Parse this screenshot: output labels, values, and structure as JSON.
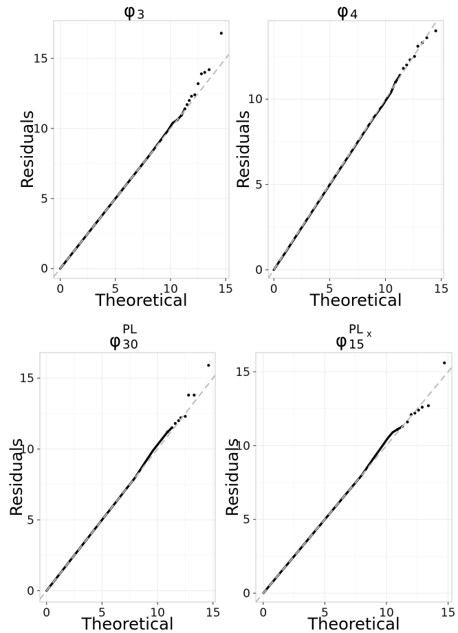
{
  "chart_data": [
    {
      "type": "scatter",
      "title": "φ",
      "title_sub": "3",
      "title_sup": "",
      "title_sup_sub": "",
      "xlabel": "Theoretical",
      "ylabel": "Residuals",
      "xlim": [
        -0.6,
        15.3
      ],
      "ylim": [
        -0.7,
        17.7
      ],
      "xticks": [
        0,
        5,
        10,
        15
      ],
      "yticks": [
        0,
        5,
        10,
        15
      ],
      "grid": true,
      "reference_line": {
        "slope": 1,
        "intercept": 0,
        "color": "#bdbdbd",
        "style": "dashed"
      },
      "points": [
        [
          0,
          0
        ],
        [
          1,
          1
        ],
        [
          2,
          2
        ],
        [
          3,
          3
        ],
        [
          4,
          4
        ],
        [
          5,
          5
        ],
        [
          6,
          6
        ],
        [
          7,
          7
        ],
        [
          8,
          8
        ],
        [
          9,
          9.05
        ],
        [
          9.8,
          9.9
        ],
        [
          10.2,
          10.4
        ],
        [
          10.6,
          10.6
        ],
        [
          11,
          10.95
        ],
        [
          11.3,
          11.4
        ],
        [
          11.5,
          11.7
        ],
        [
          11.7,
          12
        ],
        [
          11.9,
          12.3
        ],
        [
          12.2,
          12.4
        ],
        [
          12.5,
          13.2
        ],
        [
          12.8,
          13.9
        ],
        [
          13.1,
          14
        ],
        [
          13.5,
          14.2
        ],
        [
          14.6,
          16.8
        ]
      ]
    },
    {
      "type": "scatter",
      "title": "φ",
      "title_sub": "4",
      "title_sup": "",
      "title_sup_sub": "",
      "xlabel": "Theoretical",
      "ylabel": "Residuals",
      "xlim": [
        -0.5,
        15.2
      ],
      "ylim": [
        -0.5,
        14.6
      ],
      "xticks": [
        0,
        5,
        10,
        15
      ],
      "yticks": [
        0,
        5,
        10
      ],
      "grid": true,
      "reference_line": {
        "slope": 1,
        "intercept": 0,
        "color": "#bdbdbd",
        "style": "dashed"
      },
      "points": [
        [
          0,
          0
        ],
        [
          1,
          0.98
        ],
        [
          2,
          1.98
        ],
        [
          3,
          2.98
        ],
        [
          4,
          3.98
        ],
        [
          5,
          4.98
        ],
        [
          6,
          5.98
        ],
        [
          7,
          6.97
        ],
        [
          8,
          7.97
        ],
        [
          9,
          8.97
        ],
        [
          9.7,
          9.6
        ],
        [
          10,
          9.9
        ],
        [
          10.5,
          10.4
        ],
        [
          10.9,
          11
        ],
        [
          11.3,
          11.4
        ],
        [
          11.6,
          11.8
        ],
        [
          11.9,
          12
        ],
        [
          12.2,
          12.3
        ],
        [
          12.6,
          12.5
        ],
        [
          12.9,
          13.1
        ],
        [
          13.3,
          13.3
        ],
        [
          13.7,
          13.6
        ],
        [
          14.5,
          14
        ]
      ]
    },
    {
      "type": "scatter",
      "title": "φ",
      "title_sub": "30",
      "title_sup": "PL",
      "title_sup_sub": "",
      "xlabel": "Theoretical",
      "ylabel": "Residuals",
      "xlim": [
        -0.6,
        15.2
      ],
      "ylim": [
        -0.8,
        16.8
      ],
      "xticks": [
        0,
        5,
        10,
        15
      ],
      "yticks": [
        0,
        5,
        10,
        15
      ],
      "grid": true,
      "reference_line": {
        "slope": 1,
        "intercept": 0,
        "color": "#bdbdbd",
        "style": "dashed"
      },
      "points": [
        [
          0,
          0
        ],
        [
          1,
          1
        ],
        [
          2,
          2
        ],
        [
          3,
          3
        ],
        [
          4,
          4
        ],
        [
          5,
          5
        ],
        [
          6,
          6
        ],
        [
          7,
          7
        ],
        [
          8,
          8
        ],
        [
          9,
          9.2
        ],
        [
          9.6,
          9.9
        ],
        [
          10.1,
          10.4
        ],
        [
          10.5,
          10.8
        ],
        [
          10.9,
          11.2
        ],
        [
          11.3,
          11.5
        ],
        [
          11.6,
          11.8
        ],
        [
          11.9,
          12
        ],
        [
          12.1,
          12.2
        ],
        [
          12.5,
          12.3
        ],
        [
          12.8,
          13.8
        ],
        [
          13.3,
          13.8
        ],
        [
          14.6,
          15.9
        ]
      ]
    },
    {
      "type": "scatter",
      "title": "φ",
      "title_sub": "15",
      "title_sup": "PL",
      "title_sup_sub": "x",
      "xlabel": "Theoretical",
      "ylabel": "Residuals",
      "xlim": [
        -0.6,
        15.3
      ],
      "ylim": [
        -0.6,
        16.3
      ],
      "xticks": [
        0,
        5,
        10,
        15
      ],
      "yticks": [
        0,
        5,
        10,
        15
      ],
      "grid": true,
      "reference_line": {
        "slope": 1,
        "intercept": 0,
        "color": "#bdbdbd",
        "style": "dashed"
      },
      "points": [
        [
          0,
          0
        ],
        [
          1,
          1
        ],
        [
          2,
          2
        ],
        [
          3,
          3
        ],
        [
          4,
          4
        ],
        [
          5,
          5
        ],
        [
          6,
          6
        ],
        [
          7,
          7
        ],
        [
          8,
          8
        ],
        [
          9,
          9.2
        ],
        [
          9.6,
          9.9
        ],
        [
          10.1,
          10.5
        ],
        [
          10.5,
          10.9
        ],
        [
          10.9,
          11.1
        ],
        [
          11.3,
          11.3
        ],
        [
          11.7,
          11.6
        ],
        [
          12,
          12.1
        ],
        [
          12.3,
          12.2
        ],
        [
          12.6,
          12.4
        ],
        [
          12.9,
          12.6
        ],
        [
          13.4,
          12.7
        ],
        [
          14.7,
          15.6
        ]
      ]
    }
  ]
}
